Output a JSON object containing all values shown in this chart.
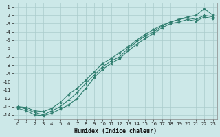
{
  "xlabel": "Humidex (Indice chaleur)",
  "bg_color": "#cce8e8",
  "grid_color": "#aacccc",
  "line_color": "#2e7d6e",
  "xlim": [
    -0.5,
    23.5
  ],
  "ylim": [
    -14.5,
    -0.5
  ],
  "xticks": [
    0,
    1,
    2,
    3,
    4,
    5,
    6,
    7,
    8,
    9,
    10,
    11,
    12,
    13,
    14,
    15,
    16,
    17,
    18,
    19,
    20,
    21,
    22,
    23
  ],
  "yticks": [
    -1,
    -2,
    -3,
    -4,
    -5,
    -6,
    -7,
    -8,
    -9,
    -10,
    -11,
    -12,
    -13,
    -14
  ],
  "series1_x": [
    0,
    1,
    2,
    3,
    4,
    5,
    6,
    7,
    8,
    9,
    10,
    11,
    12,
    13,
    14,
    15,
    16,
    17,
    18,
    19,
    20,
    21,
    22,
    23
  ],
  "series1_y": [
    -13.0,
    -13.1,
    -13.5,
    -13.6,
    -13.2,
    -12.5,
    -11.5,
    -10.8,
    -9.8,
    -8.8,
    -7.8,
    -7.2,
    -6.5,
    -5.8,
    -5.0,
    -4.3,
    -3.7,
    -3.2,
    -2.8,
    -2.5,
    -2.2,
    -2.0,
    -1.2,
    -2.0
  ],
  "series2_x": [
    0,
    1,
    2,
    3,
    4,
    5,
    6,
    7,
    8,
    9,
    10,
    11,
    12,
    13,
    14,
    15,
    16,
    17,
    18,
    19,
    20,
    21,
    22,
    23
  ],
  "series2_y": [
    -13.0,
    -13.3,
    -13.7,
    -14.0,
    -13.5,
    -13.0,
    -12.2,
    -11.3,
    -10.2,
    -9.2,
    -8.2,
    -7.5,
    -7.0,
    -6.0,
    -5.2,
    -4.5,
    -4.0,
    -3.3,
    -2.8,
    -2.5,
    -2.3,
    -2.5,
    -2.0,
    -2.2
  ],
  "series3_x": [
    0,
    1,
    2,
    3,
    4,
    5,
    6,
    7,
    8,
    9,
    10,
    11,
    12,
    13,
    14,
    15,
    16,
    17,
    18,
    19,
    20,
    21,
    22,
    23
  ],
  "series3_y": [
    -13.2,
    -13.5,
    -14.0,
    -14.1,
    -13.8,
    -13.3,
    -12.8,
    -12.0,
    -10.8,
    -9.5,
    -8.5,
    -7.8,
    -7.2,
    -6.3,
    -5.5,
    -4.8,
    -4.2,
    -3.5,
    -3.0,
    -2.8,
    -2.5,
    -2.7,
    -2.2,
    -2.4
  ],
  "tick_fontsize": 5,
  "xlabel_fontsize": 6
}
